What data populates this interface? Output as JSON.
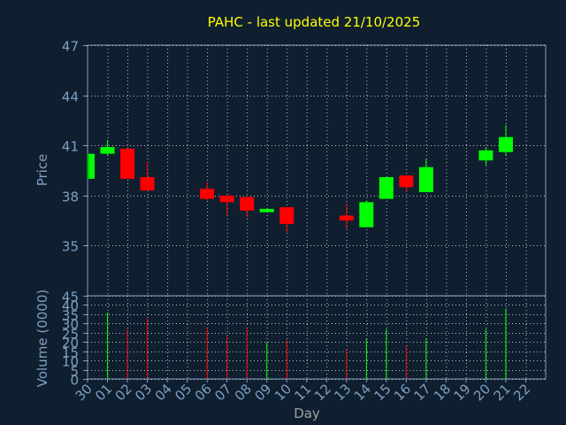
{
  "chart_data": {
    "type": "candlestick",
    "title": "PAHC - last updated 21/10/2025",
    "xlabel": "Day",
    "categories": [
      "30",
      "01",
      "02",
      "03",
      "04",
      "05",
      "06",
      "07",
      "08",
      "09",
      "10",
      "11",
      "12",
      "13",
      "14",
      "15",
      "16",
      "17",
      "18",
      "19",
      "20",
      "21",
      "22"
    ],
    "price_panel": {
      "ylabel": "Price",
      "ylim": [
        32,
        47
      ],
      "yticks": [
        35,
        38,
        41,
        44,
        47
      ],
      "up_color": "#00ff00",
      "down_color": "#ff0000",
      "candles": [
        {
          "day": "30",
          "open": 39.0,
          "high": 40.5,
          "low": 39.0,
          "close": 40.5
        },
        {
          "day": "01",
          "open": 40.5,
          "high": 41.3,
          "low": 40.4,
          "close": 40.9
        },
        {
          "day": "02",
          "open": 40.8,
          "high": 40.9,
          "low": 39.0,
          "close": 39.0
        },
        {
          "day": "03",
          "open": 39.1,
          "high": 40.0,
          "low": 38.3,
          "close": 38.3
        },
        {
          "day": "06",
          "open": 38.4,
          "high": 38.8,
          "low": 37.7,
          "close": 37.8
        },
        {
          "day": "07",
          "open": 38.0,
          "high": 38.0,
          "low": 36.8,
          "close": 37.6
        },
        {
          "day": "08",
          "open": 37.9,
          "high": 38.0,
          "low": 36.7,
          "close": 37.1
        },
        {
          "day": "09",
          "open": 37.0,
          "high": 37.2,
          "low": 37.0,
          "close": 37.2
        },
        {
          "day": "10",
          "open": 37.3,
          "high": 37.3,
          "low": 35.8,
          "close": 36.3
        },
        {
          "day": "13",
          "open": 36.8,
          "high": 37.5,
          "low": 36.0,
          "close": 36.5
        },
        {
          "day": "14",
          "open": 36.1,
          "high": 37.7,
          "low": 36.1,
          "close": 37.6
        },
        {
          "day": "15",
          "open": 37.8,
          "high": 39.1,
          "low": 37.8,
          "close": 39.1
        },
        {
          "day": "16",
          "open": 39.2,
          "high": 39.2,
          "low": 38.2,
          "close": 38.5
        },
        {
          "day": "17",
          "open": 38.2,
          "high": 40.2,
          "low": 38.2,
          "close": 39.7
        },
        {
          "day": "20",
          "open": 40.1,
          "high": 40.9,
          "low": 39.8,
          "close": 40.7
        },
        {
          "day": "21",
          "open": 40.6,
          "high": 42.2,
          "low": 40.4,
          "close": 41.5
        }
      ]
    },
    "volume_panel": {
      "ylabel": "Volume (0000)",
      "ylim": [
        0,
        45
      ],
      "yticks": [
        0,
        5,
        10,
        15,
        20,
        25,
        30,
        35,
        40,
        45
      ],
      "bars": [
        {
          "day": "01",
          "value": 36,
          "direction": "up"
        },
        {
          "day": "02",
          "value": 27,
          "direction": "down"
        },
        {
          "day": "03",
          "value": 33,
          "direction": "down"
        },
        {
          "day": "06",
          "value": 28,
          "direction": "down"
        },
        {
          "day": "07",
          "value": 23,
          "direction": "down"
        },
        {
          "day": "08",
          "value": 28,
          "direction": "down"
        },
        {
          "day": "09",
          "value": 20,
          "direction": "up"
        },
        {
          "day": "10",
          "value": 21,
          "direction": "down"
        },
        {
          "day": "13",
          "value": 16,
          "direction": "down"
        },
        {
          "day": "14",
          "value": 22,
          "direction": "up"
        },
        {
          "day": "15",
          "value": 27,
          "direction": "up"
        },
        {
          "day": "16",
          "value": 18,
          "direction": "down"
        },
        {
          "day": "17",
          "value": 22,
          "direction": "up"
        },
        {
          "day": "20",
          "value": 27,
          "direction": "up"
        },
        {
          "day": "21",
          "value": 38,
          "direction": "up"
        }
      ]
    },
    "grid": true
  }
}
